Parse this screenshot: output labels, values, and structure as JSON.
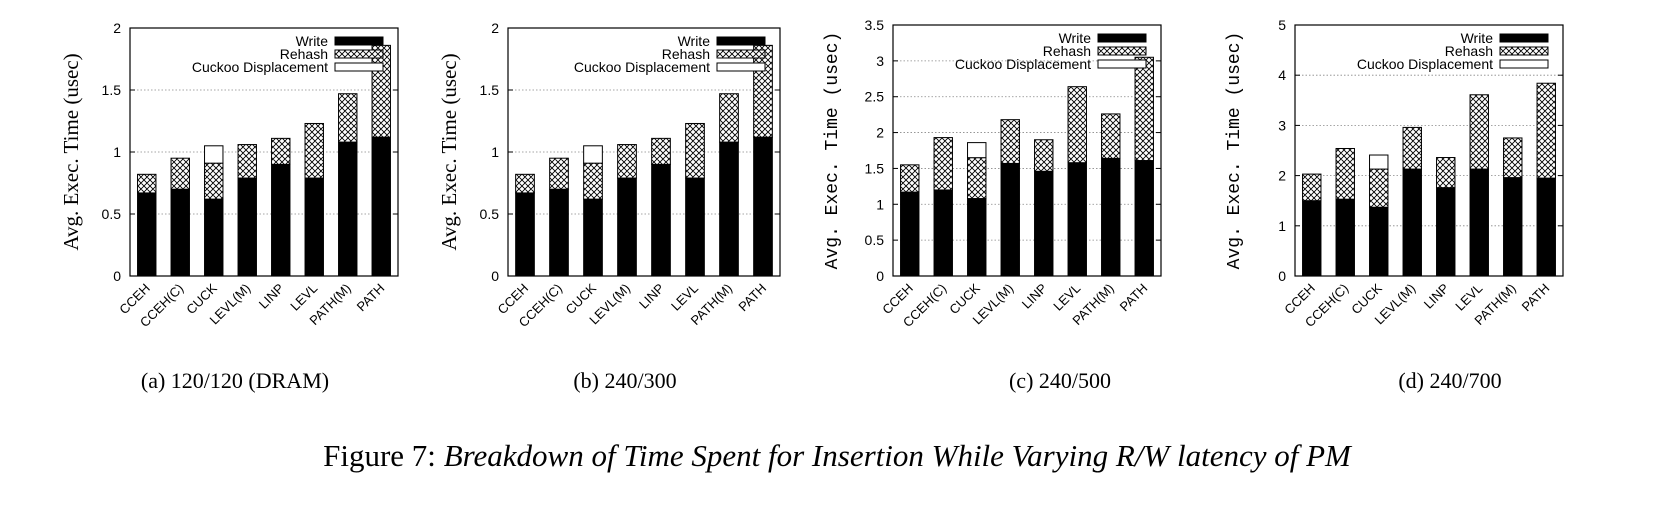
{
  "figure": {
    "caption_label": "Figure 7:",
    "caption_text": "Breakdown of Time Spent for Insertion While Varying R/W latency of PM"
  },
  "legend": [
    "Write",
    "Rehash",
    "Cuckoo Displacement"
  ],
  "colors": {
    "write": "#000000",
    "rehash": "crosshatch",
    "cuckoo": "#ffffff",
    "grid": "#888888"
  },
  "chart_data": [
    {
      "type": "bar",
      "stacked": true,
      "subcaption": "(a)  120/120 (DRAM)",
      "ylabel": "Avg. Exec. Time (usec)",
      "ylabel_style": "serif",
      "ylim": [
        0,
        2
      ],
      "yticks": [
        "0",
        "0.5",
        "1",
        "1.5",
        "2"
      ],
      "grid": "horizontal dotted",
      "legend_position": "top-right",
      "categories": [
        "CCEH",
        "CCEH(C)",
        "CUCK",
        "LEVL(M)",
        "LINP",
        "LEVL",
        "PATH(M)",
        "PATH"
      ],
      "series": [
        {
          "name": "Write",
          "values": [
            0.67,
            0.7,
            0.62,
            0.79,
            0.9,
            0.79,
            1.08,
            1.12
          ]
        },
        {
          "name": "Rehash",
          "values": [
            0.15,
            0.25,
            0.29,
            0.27,
            0.21,
            0.44,
            0.39,
            0.74
          ]
        },
        {
          "name": "Cuckoo Displacement",
          "values": [
            0,
            0,
            0.14,
            0,
            0,
            0,
            0,
            0
          ]
        }
      ]
    },
    {
      "type": "bar",
      "stacked": true,
      "subcaption": "(b)  240/300",
      "ylabel": "Avg. Exec. Time (usec)",
      "ylabel_style": "serif",
      "ylim": [
        0,
        2
      ],
      "yticks": [
        "0",
        "0.5",
        "1",
        "1.5",
        "2"
      ],
      "grid": "horizontal dotted",
      "legend_position": "top-right",
      "categories": [
        "CCEH",
        "CCEH(C)",
        "CUCK",
        "LEVL(M)",
        "LINP",
        "LEVL",
        "PATH(M)",
        "PATH"
      ],
      "series": [
        {
          "name": "Write",
          "values": [
            0.67,
            0.7,
            0.62,
            0.79,
            0.9,
            0.79,
            1.08,
            1.12
          ]
        },
        {
          "name": "Rehash",
          "values": [
            0.15,
            0.25,
            0.29,
            0.27,
            0.21,
            0.44,
            0.39,
            0.74
          ]
        },
        {
          "name": "Cuckoo Displacement",
          "values": [
            0,
            0,
            0.14,
            0,
            0,
            0,
            0,
            0
          ]
        }
      ]
    },
    {
      "type": "bar",
      "stacked": true,
      "subcaption": "(c)  240/500",
      "ylabel": "Avg. Exec. Time (usec)",
      "ylabel_style": "mono",
      "ylim": [
        0,
        3.5
      ],
      "yticks": [
        "0",
        "0.5",
        "1",
        "1.5",
        "2",
        "2.5",
        "3",
        "3.5"
      ],
      "grid": "horizontal dotted",
      "legend_position": "top-right",
      "categories": [
        "CCEH",
        "CCEH(C)",
        "CUCK",
        "LEVL(M)",
        "LINP",
        "LEVL",
        "PATH(M)",
        "PATH"
      ],
      "series": [
        {
          "name": "Write",
          "values": [
            1.17,
            1.2,
            1.08,
            1.57,
            1.46,
            1.58,
            1.64,
            1.61
          ]
        },
        {
          "name": "Rehash",
          "values": [
            0.38,
            0.73,
            0.57,
            0.61,
            0.44,
            1.06,
            0.62,
            1.44
          ]
        },
        {
          "name": "Cuckoo Displacement",
          "values": [
            0,
            0,
            0.21,
            0,
            0,
            0,
            0,
            0
          ]
        }
      ]
    },
    {
      "type": "bar",
      "stacked": true,
      "subcaption": "(d)  240/700",
      "ylabel": "Avg. Exec. Time (usec)",
      "ylabel_style": "mono",
      "ylim": [
        0,
        5
      ],
      "yticks": [
        "0",
        "1",
        "2",
        "3",
        "4",
        "5"
      ],
      "grid": "horizontal dotted",
      "legend_position": "top-right",
      "categories": [
        "CCEH",
        "CCEH(C)",
        "CUCK",
        "LEVL(M)",
        "LINP",
        "LEVL",
        "PATH(M)",
        "PATH"
      ],
      "series": [
        {
          "name": "Write",
          "values": [
            1.5,
            1.53,
            1.37,
            2.13,
            1.76,
            2.13,
            1.96,
            1.95
          ]
        },
        {
          "name": "Rehash",
          "values": [
            0.53,
            1.01,
            0.76,
            0.83,
            0.6,
            1.48,
            0.79,
            1.89
          ]
        },
        {
          "name": "Cuckoo Displacement",
          "values": [
            0,
            0,
            0.28,
            0,
            0,
            0,
            0,
            0
          ]
        }
      ]
    }
  ]
}
